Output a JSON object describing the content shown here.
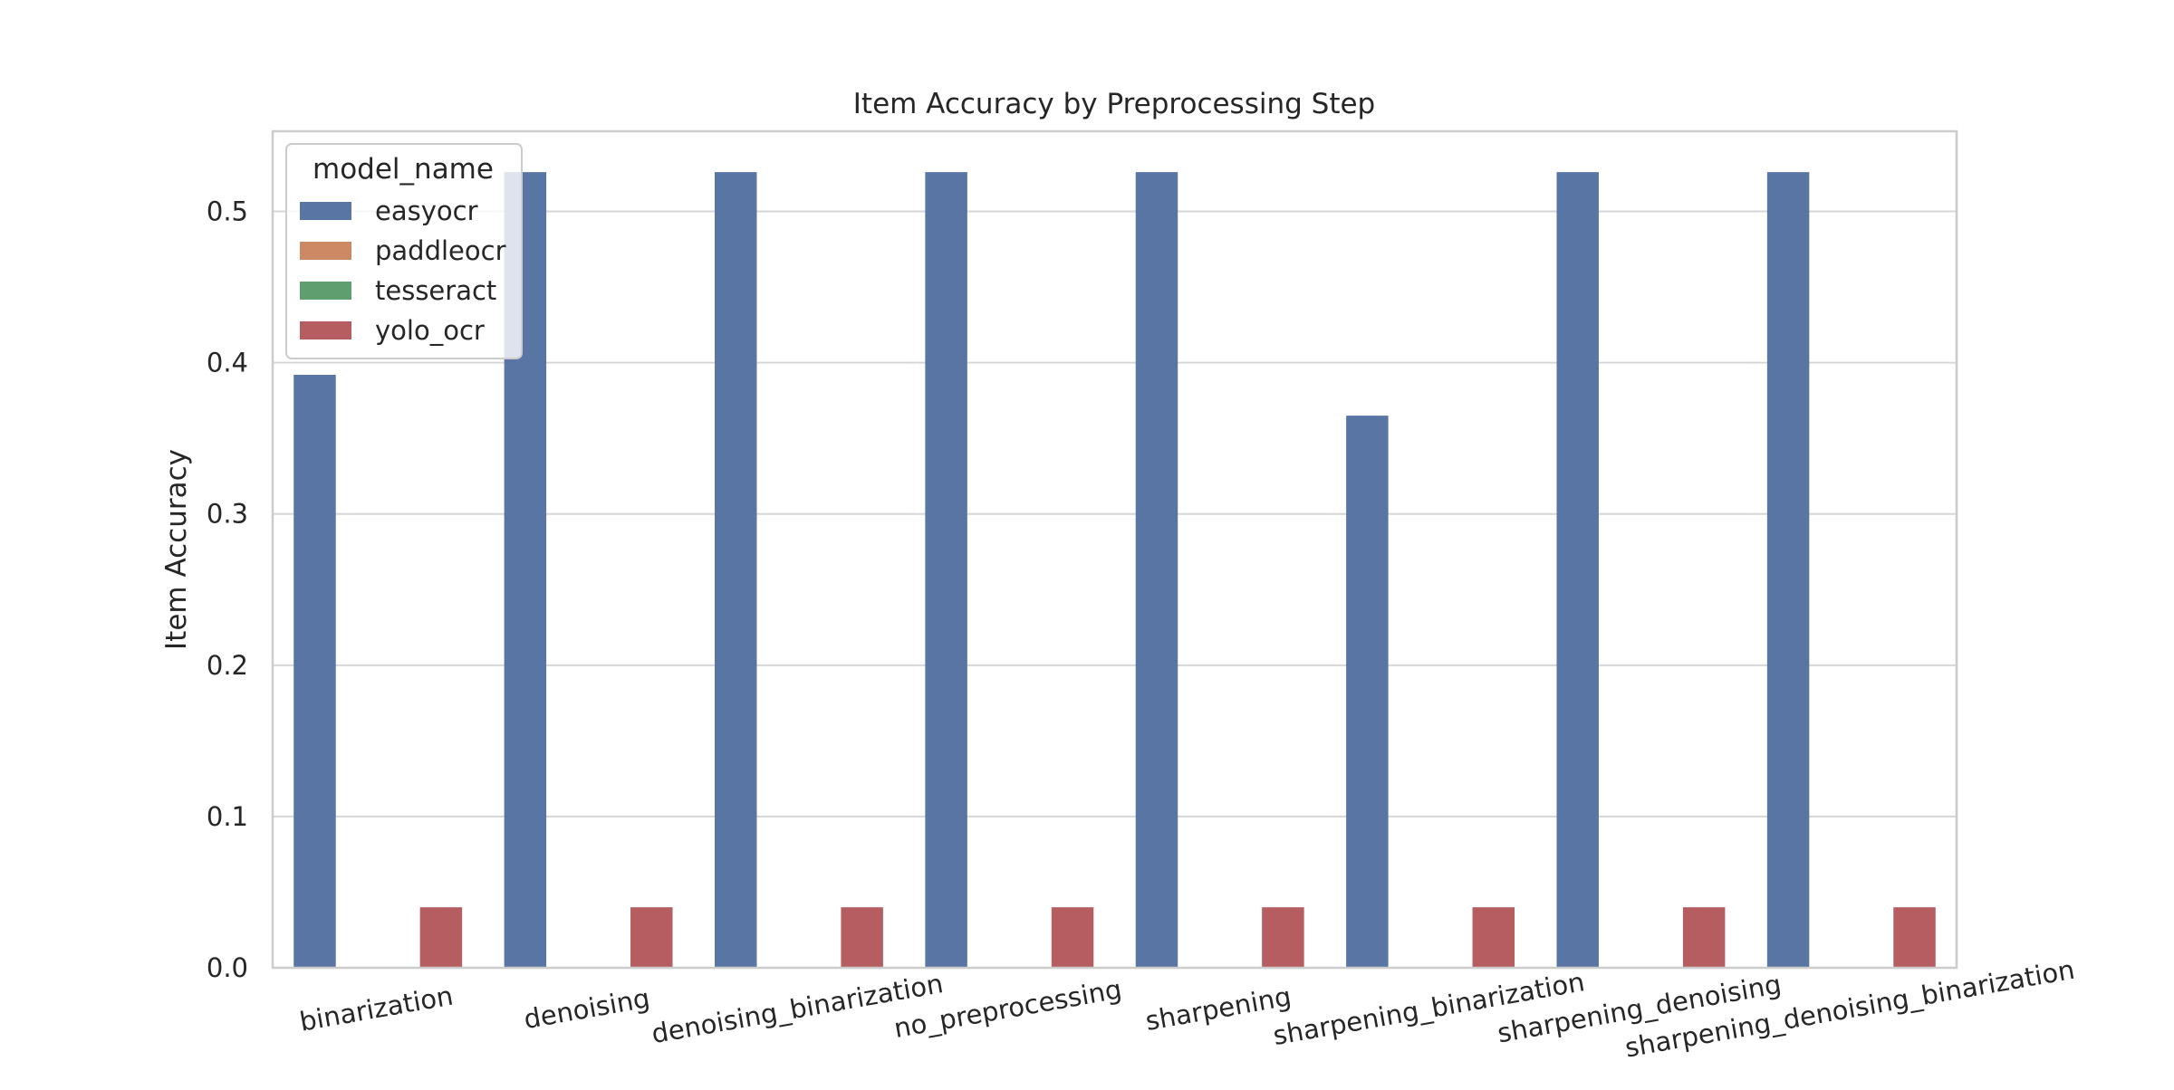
{
  "chart_data": {
    "type": "bar",
    "title": "Item Accuracy by Preprocessing Step",
    "xlabel": "",
    "ylabel": "Item Accuracy",
    "categories": [
      "binarization",
      "denoising",
      "denoising_binarization",
      "no_preprocessing",
      "sharpening",
      "sharpening_binarization",
      "sharpening_denoising",
      "sharpening_denoising_binarization"
    ],
    "series": [
      {
        "name": "easyocr",
        "color": "#5975a4",
        "values": [
          0.392,
          0.526,
          0.526,
          0.526,
          0.526,
          0.365,
          0.526,
          0.526
        ]
      },
      {
        "name": "paddleocr",
        "color": "#cc8963",
        "values": [
          0,
          0,
          0,
          0,
          0,
          0,
          0,
          0
        ]
      },
      {
        "name": "tesseract",
        "color": "#5f9e6e",
        "values": [
          0,
          0,
          0,
          0,
          0,
          0,
          0,
          0
        ]
      },
      {
        "name": "yolo_ocr",
        "color": "#b55d60",
        "values": [
          0.04,
          0.04,
          0.04,
          0.04,
          0.04,
          0.04,
          0.04,
          0.04
        ]
      }
    ],
    "ylim": [
      0,
      0.553
    ],
    "yticks": [
      "0.0",
      "0.1",
      "0.2",
      "0.3",
      "0.4",
      "0.5"
    ],
    "grid": "horizontal",
    "legend": {
      "title": "model_name",
      "placement": "top-left"
    }
  }
}
